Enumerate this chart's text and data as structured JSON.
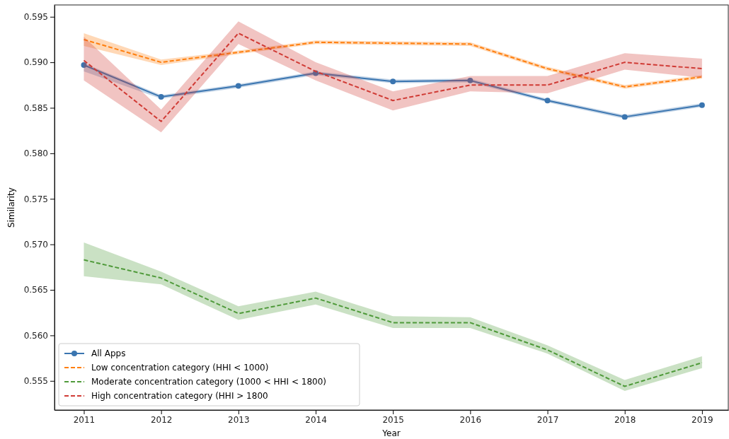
{
  "chart_data": {
    "type": "line",
    "xlabel": "Year",
    "ylabel": "Similarity",
    "x": [
      2011,
      2012,
      2013,
      2014,
      2015,
      2016,
      2017,
      2018,
      2019
    ],
    "xlim": [
      2010.62,
      2019.34
    ],
    "xticks": [
      2011,
      2012,
      2013,
      2014,
      2015,
      2016,
      2017,
      2018,
      2019
    ],
    "ylim": [
      0.5518,
      0.5963
    ],
    "yticks": [
      {
        "value": 0.555,
        "label": "0.555"
      },
      {
        "value": 0.56,
        "label": "0.560"
      },
      {
        "value": 0.565,
        "label": "0.565"
      },
      {
        "value": 0.57,
        "label": "0.570"
      },
      {
        "value": 0.575,
        "label": "0.575"
      },
      {
        "value": 0.58,
        "label": "0.580"
      },
      {
        "value": 0.585,
        "label": "0.585"
      },
      {
        "value": 0.59,
        "label": "0.590"
      },
      {
        "value": 0.595,
        "label": "0.595"
      }
    ],
    "legend": "bottom left",
    "grid": false,
    "series": [
      {
        "name": "All Apps",
        "color": "#3a75b0",
        "marker": "circle",
        "line_style": "solid",
        "values": [
          0.5897,
          0.5862,
          0.5874,
          0.5888,
          0.5879,
          0.588,
          0.5858,
          0.584,
          0.5853
        ],
        "lower": [
          0.589,
          0.586,
          0.5872,
          0.5886,
          0.5877,
          0.5878,
          0.5856,
          0.5838,
          0.5851
        ],
        "upper": [
          0.5899,
          0.5864,
          0.5876,
          0.589,
          0.5881,
          0.5882,
          0.586,
          0.5842,
          0.5855
        ]
      },
      {
        "name": "Low concentration category (HHI < 1000)",
        "color": "#ff7f0e",
        "marker": "none",
        "line_style": "dashed",
        "values": [
          0.5925,
          0.59,
          0.5911,
          0.5922,
          0.5921,
          0.592,
          0.5893,
          0.5873,
          0.5884
        ],
        "lower": [
          0.5918,
          0.5897,
          0.5909,
          0.592,
          0.5919,
          0.5918,
          0.5891,
          0.5871,
          0.5882
        ],
        "upper": [
          0.5932,
          0.5903,
          0.5913,
          0.5924,
          0.5923,
          0.5922,
          0.5895,
          0.5875,
          0.5886
        ]
      },
      {
        "name": "Moderate concentration category (1000 < HHI < 1800)",
        "color": "#4f9a3a",
        "marker": "none",
        "line_style": "dashed",
        "values": [
          0.5683,
          0.5663,
          0.5624,
          0.5641,
          0.5614,
          0.5614,
          0.5584,
          0.5544,
          0.557
        ],
        "lower": [
          0.5665,
          0.5656,
          0.5617,
          0.5634,
          0.5608,
          0.5608,
          0.558,
          0.5539,
          0.5564
        ],
        "upper": [
          0.5702,
          0.567,
          0.5632,
          0.5648,
          0.5621,
          0.562,
          0.5589,
          0.5551,
          0.5577
        ]
      },
      {
        "name": "High concentration category (HHI > 1800",
        "color": "#d03b35",
        "marker": "none",
        "line_style": "dashed",
        "values": [
          0.5902,
          0.5835,
          0.5932,
          0.589,
          0.5858,
          0.5875,
          0.5875,
          0.59,
          0.5893
        ],
        "lower": [
          0.588,
          0.5823,
          0.592,
          0.588,
          0.5847,
          0.5868,
          0.5866,
          0.5892,
          0.5883
        ],
        "upper": [
          0.5928,
          0.5848,
          0.5945,
          0.59,
          0.5868,
          0.5885,
          0.5885,
          0.591,
          0.5904
        ]
      }
    ]
  }
}
